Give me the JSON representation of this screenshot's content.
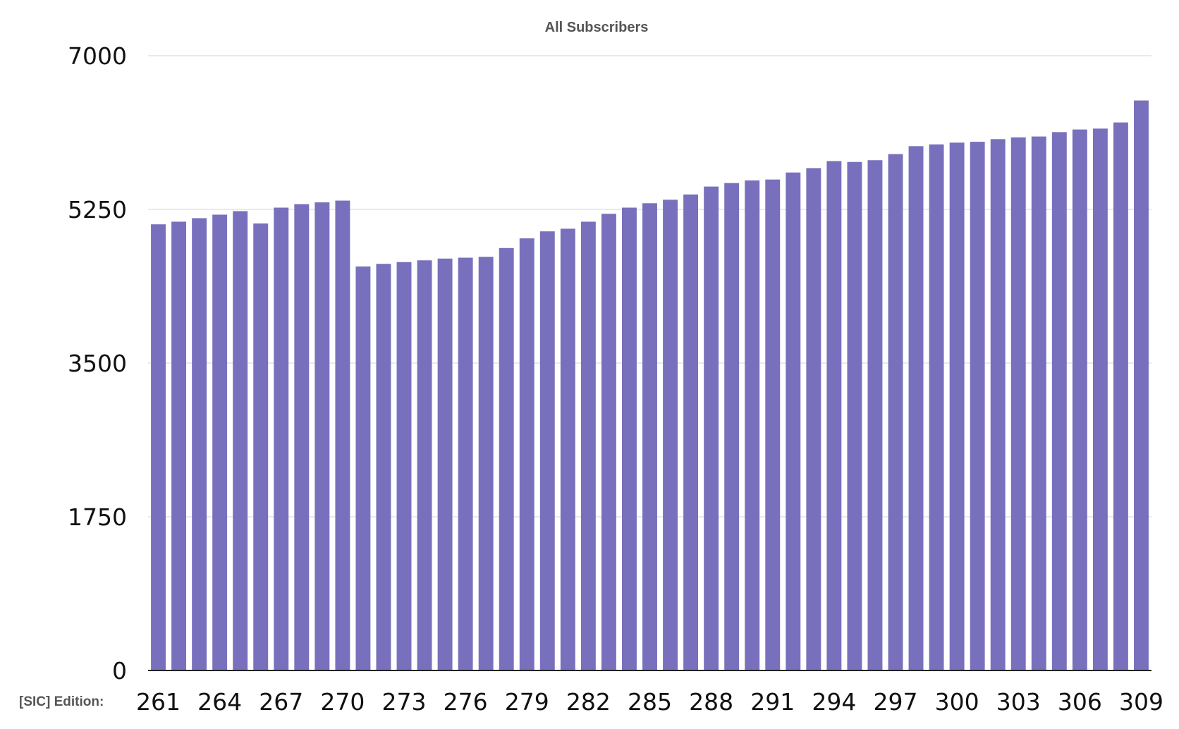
{
  "chart_data": {
    "type": "bar",
    "title": "All Subscribers",
    "xlabel": "[SIC] Edition:",
    "ylabel": "",
    "ylim": [
      0,
      7000
    ],
    "yticks": [
      0,
      1750,
      3500,
      5250,
      7000
    ],
    "grid": true,
    "legend": "none",
    "bar_color": "#7870BD",
    "categories": [
      261,
      262,
      263,
      264,
      265,
      266,
      267,
      268,
      269,
      270,
      271,
      272,
      273,
      274,
      275,
      276,
      277,
      278,
      279,
      280,
      281,
      282,
      283,
      284,
      285,
      286,
      287,
      288,
      289,
      290,
      291,
      292,
      293,
      294,
      295,
      296,
      297,
      298,
      299,
      300,
      301,
      302,
      303,
      304,
      305,
      306,
      307,
      308,
      309
    ],
    "xtick_labels": [
      "261",
      "264",
      "267",
      "270",
      "273",
      "276",
      "279",
      "282",
      "285",
      "288",
      "291",
      "294",
      "297",
      "300",
      "303",
      "306",
      "309"
    ],
    "values": [
      5080,
      5110,
      5150,
      5190,
      5230,
      5090,
      5270,
      5310,
      5330,
      5350,
      4600,
      4630,
      4650,
      4670,
      4690,
      4700,
      4710,
      4810,
      4920,
      5000,
      5030,
      5110,
      5200,
      5270,
      5320,
      5360,
      5420,
      5510,
      5550,
      5580,
      5590,
      5670,
      5720,
      5800,
      5790,
      5810,
      5880,
      5970,
      5990,
      6010,
      6020,
      6050,
      6070,
      6080,
      6130,
      6160,
      6170,
      6240,
      6490
    ]
  }
}
